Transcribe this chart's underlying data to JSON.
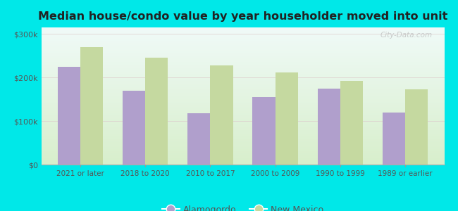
{
  "title": "Median house/condo value by year householder moved into unit",
  "categories": [
    "2021 or later",
    "2018 to 2020",
    "2010 to 2017",
    "2000 to 2009",
    "1990 to 1999",
    "1989 or earlier"
  ],
  "alamogordo": [
    225000,
    170000,
    118000,
    155000,
    175000,
    120000
  ],
  "new_mexico": [
    270000,
    245000,
    228000,
    212000,
    193000,
    173000
  ],
  "alamogordo_color": "#b09fcc",
  "new_mexico_color": "#c5d9a0",
  "background_outer": "#00e8e8",
  "background_inner_top": "#f0faf8",
  "background_inner_bottom": "#d8efcc",
  "yticks": [
    0,
    100000,
    200000,
    300000
  ],
  "ytick_labels": [
    "$0",
    "$100k",
    "$200k",
    "$300k"
  ],
  "ylim": [
    0,
    315000
  ],
  "bar_width": 0.35,
  "watermark": "City-Data.com",
  "legend_labels": [
    "Alamogordo",
    "New Mexico"
  ]
}
